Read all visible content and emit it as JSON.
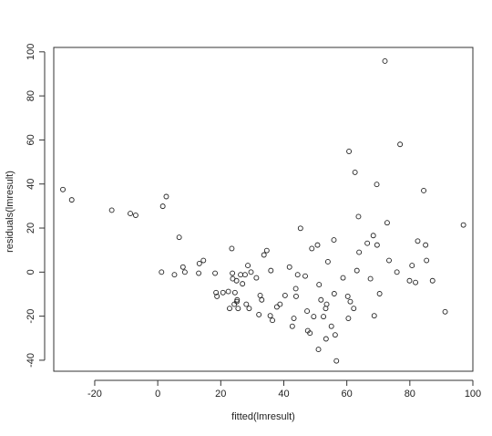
{
  "chart_data": {
    "type": "scatter",
    "title": "",
    "xlabel": "fitted(lmresult)",
    "ylabel": "residuals(lmresult)",
    "xlim": [
      -33,
      100
    ],
    "ylim": [
      -45,
      102
    ],
    "xticks": [
      -20,
      0,
      20,
      40,
      60,
      80,
      100
    ],
    "yticks": [
      -40,
      -20,
      0,
      20,
      40,
      60,
      80,
      100
    ],
    "xtick_labels": [
      "-20",
      "0",
      "20",
      "40",
      "60",
      "80",
      "100"
    ],
    "ytick_labels": [
      "-40",
      "-20",
      "0",
      "20",
      "40",
      "60",
      "80",
      "100"
    ],
    "grid": false,
    "marker": "open-circle",
    "points": [
      [
        -30.1,
        37.5
      ],
      [
        -27.3,
        32.8
      ],
      [
        -14.6,
        28.1
      ],
      [
        -8.7,
        26.6
      ],
      [
        -7.0,
        25.8
      ],
      [
        1.2,
        0.0
      ],
      [
        1.6,
        29.9
      ],
      [
        2.7,
        34.3
      ],
      [
        5.3,
        -1.2
      ],
      [
        6.8,
        15.8
      ],
      [
        8.0,
        2.3
      ],
      [
        8.6,
        0.0
      ],
      [
        13.0,
        -0.5
      ],
      [
        13.2,
        3.9
      ],
      [
        14.5,
        5.3
      ],
      [
        18.2,
        -0.5
      ],
      [
        18.5,
        -9.3
      ],
      [
        18.8,
        -11.0
      ],
      [
        20.7,
        -9.3
      ],
      [
        22.4,
        -8.8
      ],
      [
        22.8,
        -16.5
      ],
      [
        23.5,
        10.7
      ],
      [
        23.7,
        -0.5
      ],
      [
        23.8,
        -3.0
      ],
      [
        24.3,
        -14.6
      ],
      [
        24.5,
        -9.3
      ],
      [
        25.0,
        -3.9
      ],
      [
        25.1,
        -13.4
      ],
      [
        25.2,
        -12.6
      ],
      [
        25.5,
        -16.5
      ],
      [
        26.3,
        -1.2
      ],
      [
        26.9,
        -5.3
      ],
      [
        27.7,
        -1.2
      ],
      [
        28.1,
        -14.6
      ],
      [
        28.6,
        3.0
      ],
      [
        29.0,
        -16.5
      ],
      [
        29.6,
        0.0
      ],
      [
        31.3,
        -2.6
      ],
      [
        32.1,
        -19.3
      ],
      [
        32.5,
        -10.6
      ],
      [
        33.0,
        -12.6
      ],
      [
        33.7,
        7.8
      ],
      [
        34.6,
        9.8
      ],
      [
        35.7,
        -19.8
      ],
      [
        35.9,
        0.7
      ],
      [
        36.4,
        -21.9
      ],
      [
        37.8,
        -15.8
      ],
      [
        38.8,
        -14.6
      ],
      [
        40.4,
        -10.6
      ],
      [
        41.8,
        2.3
      ],
      [
        42.7,
        -24.6
      ],
      [
        43.2,
        -21.0
      ],
      [
        43.9,
        -11.0
      ],
      [
        43.8,
        -7.5
      ],
      [
        44.4,
        -1.2
      ],
      [
        45.3,
        19.9
      ],
      [
        46.8,
        -1.8
      ],
      [
        47.4,
        -17.7
      ],
      [
        47.6,
        -26.6
      ],
      [
        48.3,
        -27.7
      ],
      [
        48.9,
        10.7
      ],
      [
        49.5,
        -20.2
      ],
      [
        50.7,
        12.3
      ],
      [
        51.0,
        -35.1
      ],
      [
        51.2,
        -5.7
      ],
      [
        51.8,
        -12.6
      ],
      [
        52.6,
        -20.2
      ],
      [
        53.3,
        -16.5
      ],
      [
        53.4,
        -30.3
      ],
      [
        53.6,
        -14.6
      ],
      [
        54.0,
        4.7
      ],
      [
        55.1,
        -24.6
      ],
      [
        55.9,
        14.6
      ],
      [
        56.3,
        -28.5
      ],
      [
        56.7,
        -40.3
      ],
      [
        56.0,
        -9.8
      ],
      [
        58.8,
        -2.6
      ],
      [
        60.3,
        -11.0
      ],
      [
        60.5,
        -21.0
      ],
      [
        60.7,
        54.8
      ],
      [
        61.1,
        -13.4
      ],
      [
        62.2,
        -16.5
      ],
      [
        62.6,
        45.3
      ],
      [
        63.2,
        0.7
      ],
      [
        63.9,
        9.0
      ],
      [
        63.7,
        25.2
      ],
      [
        66.5,
        13.1
      ],
      [
        67.5,
        -3.0
      ],
      [
        68.4,
        16.6
      ],
      [
        68.7,
        -19.8
      ],
      [
        69.6,
        12.3
      ],
      [
        69.5,
        39.8
      ],
      [
        70.4,
        -9.8
      ],
      [
        72.1,
        95.8
      ],
      [
        72.8,
        22.4
      ],
      [
        73.4,
        5.3
      ],
      [
        75.9,
        0.0
      ],
      [
        76.9,
        58.0
      ],
      [
        79.9,
        -3.9
      ],
      [
        80.7,
        3.0
      ],
      [
        81.8,
        -4.7
      ],
      [
        82.5,
        14.1
      ],
      [
        84.4,
        37.0
      ],
      [
        85.0,
        12.3
      ],
      [
        85.3,
        5.3
      ],
      [
        87.2,
        -3.9
      ],
      [
        91.2,
        -18.0
      ],
      [
        97.0,
        21.4
      ]
    ]
  }
}
